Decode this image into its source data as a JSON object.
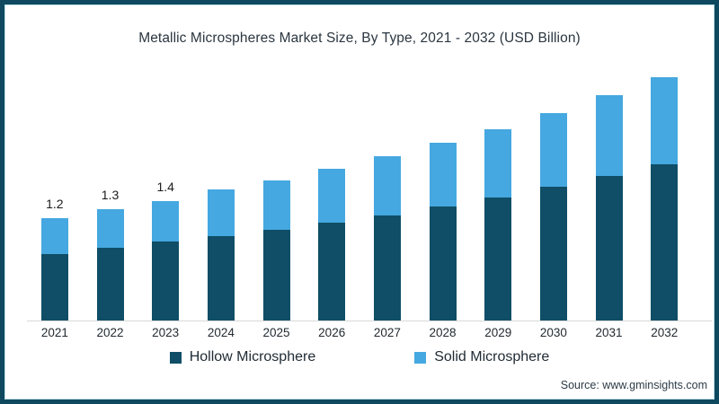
{
  "title": "Metallic Microspheres Market Size, By Type, 2021 - 2032 (USD Billion)",
  "source": "Source: www.gminsights.com",
  "frame": {
    "border_color": "#0e495f",
    "background": "#ffffff"
  },
  "chart_data": {
    "type": "bar",
    "stacked": true,
    "title": "Metallic Microspheres Market Size, By Type, 2021 - 2032 (USD Billion)",
    "categories": [
      "2021",
      "2022",
      "2023",
      "2024",
      "2025",
      "2026",
      "2027",
      "2028",
      "2029",
      "2030",
      "2031",
      "2032"
    ],
    "series": [
      {
        "name": "Hollow Microsphere",
        "color": "#0f4e66",
        "values": [
          0.78,
          0.85,
          0.92,
          0.99,
          1.06,
          1.14,
          1.23,
          1.33,
          1.44,
          1.56,
          1.69,
          1.83
        ]
      },
      {
        "name": "Solid Microsphere",
        "color": "#45a8e0",
        "values": [
          0.42,
          0.45,
          0.48,
          0.54,
          0.58,
          0.63,
          0.69,
          0.75,
          0.8,
          0.87,
          0.95,
          1.02
        ]
      }
    ],
    "totals": [
      1.2,
      1.3,
      1.4,
      1.53,
      1.64,
      1.77,
      1.92,
      2.08,
      2.24,
      2.43,
      2.64,
      2.85
    ],
    "data_labels": [
      "1.2",
      "1.3",
      "1.4",
      "",
      "",
      "",
      "",
      "",
      "",
      "",
      "",
      ""
    ],
    "xlabel": "",
    "ylabel": "",
    "ylim": [
      0,
      3.15
    ],
    "grid": false,
    "legend_position": "bottom",
    "axis_line_color": "#d9d9d9"
  }
}
